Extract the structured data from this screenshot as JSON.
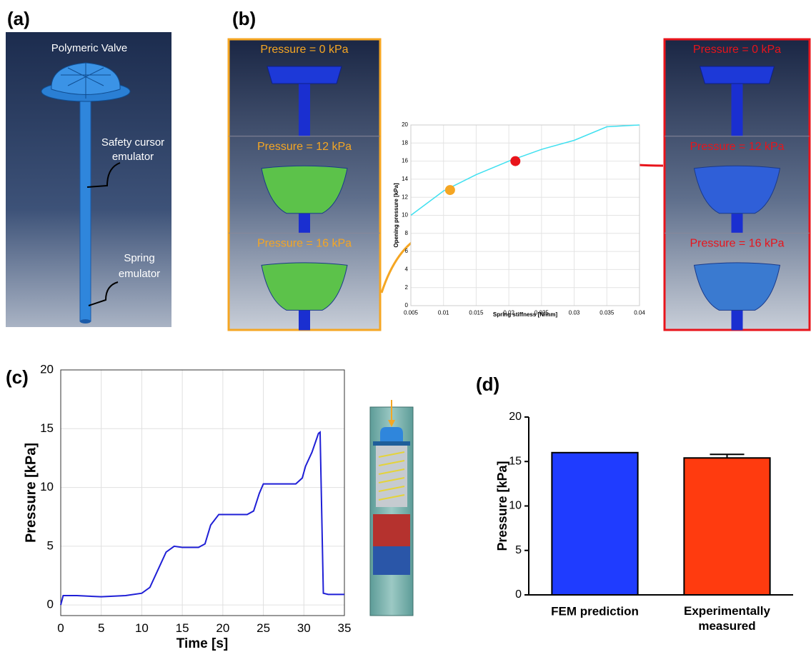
{
  "panels": {
    "labels": [
      "(a)",
      "(b)",
      "(c)",
      "(d)"
    ],
    "a": {
      "valve": "Polymeric Valve",
      "cursor": [
        "Safety cursor",
        "emulator"
      ],
      "spring": [
        "Spring",
        "emulator"
      ]
    },
    "b": {
      "left": [
        "Pressure = 0 kPa",
        "Pressure = 12 kPa",
        "Pressure = 16 kPa"
      ],
      "right": [
        "Pressure = 0 kPa",
        "Pressure = 12 kPa",
        "Pressure = 16 kPa"
      ]
    }
  },
  "chart_data": [
    {
      "type": "line",
      "xlabel": "Spring stiffness [N/mm]",
      "ylabel": "Opening pressure [kPa]",
      "x": [
        0.005,
        0.01,
        0.015,
        0.02,
        0.025,
        0.03,
        0.035,
        0.04
      ],
      "series": [
        {
          "color": "#3fe0f0",
          "values": [
            10,
            12.7,
            14.5,
            16,
            17.3,
            18.3,
            19.8,
            20
          ]
        }
      ],
      "markers": {
        "x": [
          0.011,
          0.021
        ],
        "values": [
          12.8,
          16
        ],
        "colors": [
          "#f5a623",
          "#e8141b"
        ]
      },
      "xlim": [
        0.005,
        0.04
      ],
      "xticks": [
        0.005,
        0.01,
        0.015,
        0.02,
        0.025,
        0.03,
        0.035,
        0.04
      ],
      "ylim": [
        0,
        20
      ],
      "yticks": [
        0,
        2,
        4,
        6,
        8,
        10,
        12,
        14,
        16,
        18,
        20
      ],
      "grid": true
    },
    {
      "type": "line",
      "xlabel": "Time [s]",
      "ylabel": "Pressure [kPa]",
      "x": [
        0,
        0.3,
        2,
        5,
        8,
        10,
        11,
        12,
        13,
        14,
        15,
        17,
        17.8,
        18.5,
        19.5,
        21,
        23,
        23.8,
        24.5,
        25,
        27,
        29,
        29.8,
        30.2,
        31,
        31.8,
        32,
        32.4,
        33,
        35
      ],
      "series": [
        {
          "color": "#1f1fd6",
          "values": [
            0,
            0.8,
            0.8,
            0.7,
            0.8,
            1.0,
            1.5,
            3,
            4.5,
            5,
            4.9,
            4.9,
            5.2,
            6.8,
            7.7,
            7.7,
            7.7,
            8,
            9.5,
            10.3,
            10.3,
            10.3,
            10.8,
            11.8,
            13,
            14.6,
            14.7,
            1,
            0.9,
            0.9
          ]
        }
      ],
      "xlim": [
        0,
        35
      ],
      "xticks": [
        0,
        5,
        10,
        15,
        20,
        25,
        30,
        35
      ],
      "ylim": [
        -0.9,
        20
      ],
      "yticks": [
        0,
        5,
        10,
        15,
        20
      ],
      "grid": true
    },
    {
      "type": "bar",
      "ylabel": "Pressure [kPa]",
      "categories": [
        "FEM prediction",
        "Experimentally measured"
      ],
      "values": [
        16,
        15.4
      ],
      "errors": [
        null,
        0.4
      ],
      "colors": [
        "#1f3cff",
        "#ff3b0f"
      ],
      "ylim": [
        0,
        20
      ],
      "yticks": [
        0,
        5,
        10,
        15,
        20
      ],
      "grid": false
    }
  ]
}
